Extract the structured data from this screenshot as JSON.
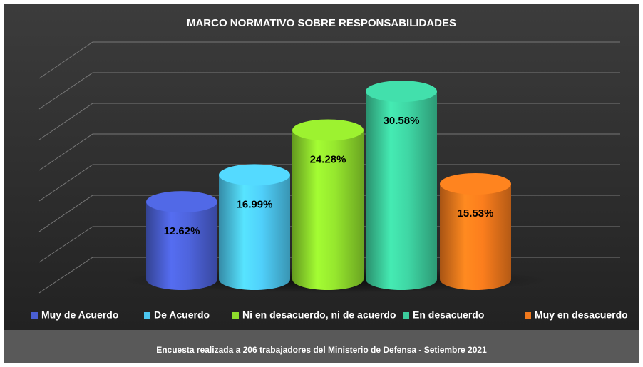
{
  "chart_data": {
    "type": "bar",
    "title": "MARCO NORMATIVO SOBRE RESPONSABILIDADES",
    "categories": [
      "Muy de Acuerdo",
      "De Acuerdo",
      "Ni en desacuerdo, ni de acuerdo",
      "En desacuerdo",
      "Muy en desacuerdo"
    ],
    "values": [
      12.62,
      16.99,
      24.28,
      30.58,
      15.53
    ],
    "value_labels": [
      "12.62%",
      "16.99%",
      "24.28%",
      "30.58%",
      "15.53%"
    ],
    "colors": [
      "#4a5fd2",
      "#4cc6ef",
      "#8fdc2c",
      "#3ccc9c",
      "#f0781c"
    ],
    "ylim": [
      0,
      35
    ],
    "grid": true,
    "legend": "bottom",
    "caption": "Encuesta realizada a 206 trabajadores del Ministerio de Defensa - Setiembre 2021"
  }
}
